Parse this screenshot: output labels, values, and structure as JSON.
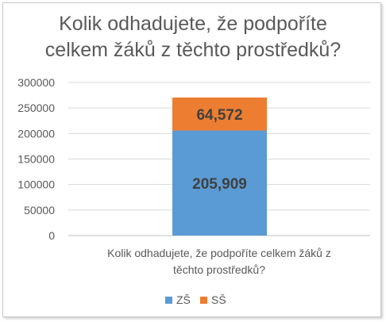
{
  "chart_data": {
    "type": "bar",
    "stacked": true,
    "title_lines": [
      "Kolik odhadujete, že podpoříte",
      "celkem žáků z těchto prostředků?"
    ],
    "category_lines": [
      "Kolik odhadujete, že podpoříte celkem žáků z",
      "těchto prostředků?"
    ],
    "categories": [
      "Kolik odhadujete, že podpoříte celkem žáků z těchto prostředků?"
    ],
    "series": [
      {
        "name": "ZŠ",
        "values": [
          205909
        ],
        "label": "205,909",
        "color": "#5b9bd5"
      },
      {
        "name": "SŠ",
        "values": [
          64572
        ],
        "label": "64,572",
        "color": "#ed7d31"
      }
    ],
    "ylim": [
      0,
      300000
    ],
    "yticks": [
      "0",
      "50000",
      "100000",
      "150000",
      "200000",
      "250000",
      "300000"
    ],
    "grid": true,
    "legend_position": "bottom"
  }
}
